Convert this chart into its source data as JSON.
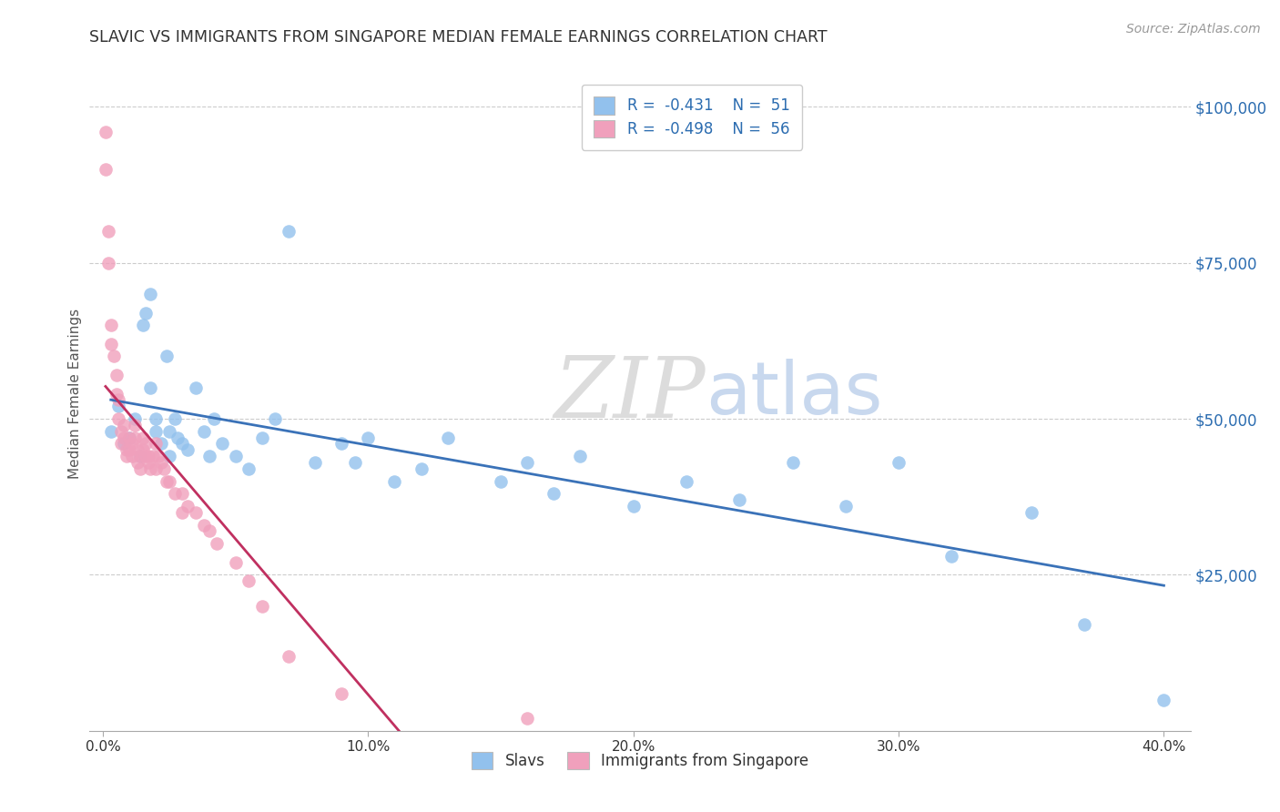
{
  "title": "SLAVIC VS IMMIGRANTS FROM SINGAPORE MEDIAN FEMALE EARNINGS CORRELATION CHART",
  "source": "Source: ZipAtlas.com",
  "ylabel": "Median Female Earnings",
  "watermark_zip": "ZIP",
  "watermark_atlas": "atlas",
  "legend_label1": "Slavs",
  "legend_label2": "Immigrants from Singapore",
  "R1": -0.431,
  "N1": 51,
  "R2": -0.498,
  "N2": 56,
  "color_blue": "#92C1ED",
  "color_pink": "#F0A0BC",
  "line_color_blue": "#3A72B8",
  "line_color_pink": "#C03060",
  "xlim": [
    -0.005,
    0.41
  ],
  "ylim": [
    0,
    108000
  ],
  "xticks": [
    0.0,
    0.1,
    0.2,
    0.3,
    0.4
  ],
  "xtick_labels": [
    "0.0%",
    "10.0%",
    "20.0%",
    "30.0%",
    "40.0%"
  ],
  "ytick_labels_right": [
    "$25,000",
    "$50,000",
    "$75,000",
    "$100,000"
  ],
  "ytick_vals_right": [
    25000,
    50000,
    75000,
    100000
  ],
  "blue_x": [
    0.003,
    0.006,
    0.008,
    0.01,
    0.012,
    0.014,
    0.015,
    0.016,
    0.018,
    0.018,
    0.02,
    0.02,
    0.022,
    0.024,
    0.025,
    0.025,
    0.027,
    0.028,
    0.03,
    0.032,
    0.035,
    0.038,
    0.04,
    0.042,
    0.045,
    0.05,
    0.055,
    0.06,
    0.065,
    0.07,
    0.08,
    0.09,
    0.095,
    0.1,
    0.11,
    0.12,
    0.13,
    0.15,
    0.16,
    0.17,
    0.18,
    0.2,
    0.22,
    0.24,
    0.26,
    0.28,
    0.3,
    0.32,
    0.35,
    0.37,
    0.4
  ],
  "blue_y": [
    48000,
    52000,
    46000,
    47000,
    50000,
    44000,
    65000,
    67000,
    70000,
    55000,
    48000,
    50000,
    46000,
    60000,
    48000,
    44000,
    50000,
    47000,
    46000,
    45000,
    55000,
    48000,
    44000,
    50000,
    46000,
    44000,
    42000,
    47000,
    50000,
    80000,
    43000,
    46000,
    43000,
    47000,
    40000,
    42000,
    47000,
    40000,
    43000,
    38000,
    44000,
    36000,
    40000,
    37000,
    43000,
    36000,
    43000,
    28000,
    35000,
    17000,
    5000
  ],
  "pink_x": [
    0.001,
    0.001,
    0.002,
    0.002,
    0.003,
    0.003,
    0.004,
    0.005,
    0.005,
    0.006,
    0.006,
    0.007,
    0.007,
    0.008,
    0.008,
    0.009,
    0.009,
    0.01,
    0.01,
    0.011,
    0.011,
    0.012,
    0.012,
    0.013,
    0.013,
    0.014,
    0.014,
    0.015,
    0.015,
    0.016,
    0.016,
    0.017,
    0.017,
    0.018,
    0.019,
    0.02,
    0.02,
    0.021,
    0.022,
    0.023,
    0.024,
    0.025,
    0.027,
    0.03,
    0.03,
    0.032,
    0.035,
    0.038,
    0.04,
    0.043,
    0.05,
    0.055,
    0.06,
    0.07,
    0.09,
    0.16
  ],
  "pink_y": [
    90000,
    96000,
    80000,
    75000,
    65000,
    62000,
    60000,
    57000,
    54000,
    50000,
    53000,
    48000,
    46000,
    49000,
    47000,
    45000,
    44000,
    47000,
    45000,
    46000,
    44000,
    49000,
    47000,
    45000,
    43000,
    44000,
    42000,
    47000,
    45000,
    44000,
    46000,
    43000,
    44000,
    42000,
    44000,
    46000,
    42000,
    44000,
    43000,
    42000,
    40000,
    40000,
    38000,
    38000,
    35000,
    36000,
    35000,
    33000,
    32000,
    30000,
    27000,
    24000,
    20000,
    12000,
    6000,
    2000
  ],
  "background_color": "#FFFFFF",
  "grid_color": "#CCCCCC",
  "title_color": "#333333",
  "axis_label_color": "#555555",
  "right_tick_color": "#2B6CB0",
  "legend_text_color": "#2B6CB0",
  "watermark_zip_color": "#DCDCDC",
  "watermark_atlas_color": "#C8D8EE"
}
